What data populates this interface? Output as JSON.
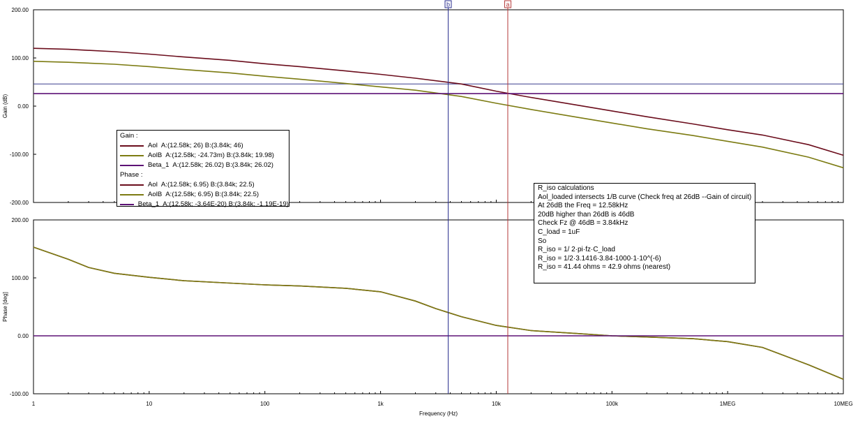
{
  "chart_data": [
    {
      "type": "line",
      "panel": "gain",
      "xscale": "log",
      "xlim": [
        1,
        10000000
      ],
      "ylim": [
        -200,
        200
      ],
      "ylabel": "Gain (dB)",
      "yticks": [
        "200.00",
        "100.00",
        "0.00",
        "-100.00",
        "-200.00"
      ],
      "x": [
        1,
        2,
        5,
        10,
        20,
        50,
        100,
        200,
        500,
        1000,
        2000,
        5000,
        10000,
        20000,
        50000,
        100000,
        200000,
        500000,
        1000000,
        2000000,
        5000000,
        10000000
      ],
      "series": [
        {
          "name": "Aol",
          "color": "#6b0d1c",
          "values": [
            120,
            118,
            113,
            108,
            102,
            95,
            88,
            82,
            73,
            66,
            58,
            46,
            31,
            18,
            2,
            -10,
            -22,
            -37,
            -49,
            -60,
            -80,
            -102
          ]
        },
        {
          "name": "AolB",
          "color": "#7c7b12",
          "values": [
            93,
            91,
            87,
            82,
            76,
            69,
            62,
            56,
            47,
            40,
            33,
            20,
            6,
            -7,
            -23,
            -35,
            -47,
            -61,
            -73,
            -85,
            -106,
            -128
          ]
        },
        {
          "name": "Beta_1",
          "color": "#5d1276",
          "values": [
            26,
            26,
            26,
            26,
            26,
            26,
            26,
            26,
            26,
            26,
            26,
            26,
            26,
            26,
            26,
            26,
            26,
            26,
            26,
            26,
            26,
            26
          ]
        }
      ],
      "hlines": [
        46,
        26
      ]
    },
    {
      "type": "line",
      "panel": "phase",
      "xscale": "log",
      "xlim": [
        1,
        10000000
      ],
      "ylim": [
        -100,
        200
      ],
      "ylabel": "Phase [deg]",
      "xlabel": "Frequency (Hz)",
      "yticks": [
        "200.00",
        "100.00",
        "0.00",
        "-100.00"
      ],
      "xticks": [
        "1",
        "10",
        "100",
        "1k",
        "10k",
        "100k",
        "1MEG",
        "10MEG"
      ],
      "x": [
        1,
        2,
        3,
        5,
        10,
        20,
        50,
        100,
        200,
        500,
        1000,
        2000,
        3000,
        5000,
        10000,
        20000,
        50000,
        100000,
        200000,
        500000,
        1000000,
        2000000,
        5000000,
        10000000
      ],
      "series": [
        {
          "name": "Aol",
          "color": "#6b0d1c",
          "values": [
            153,
            132,
            118,
            108,
            101,
            95,
            91,
            88,
            86,
            82,
            76,
            60,
            47,
            33,
            18,
            9,
            4,
            0,
            -2,
            -5,
            -10,
            -20,
            -50,
            -75
          ]
        },
        {
          "name": "AolB",
          "color": "#7c7b12",
          "values": [
            153,
            132,
            118,
            108,
            101,
            95,
            91,
            88,
            86,
            82,
            76,
            60,
            47,
            33,
            18,
            9,
            4,
            0,
            -2,
            -5,
            -10,
            -20,
            -50,
            -75
          ]
        },
        {
          "name": "Beta_1",
          "color": "#5d1276",
          "values": [
            0,
            0,
            0,
            0,
            0,
            0,
            0,
            0,
            0,
            0,
            0,
            0,
            0,
            0,
            0,
            0,
            0,
            0,
            0,
            0,
            0,
            0,
            0,
            0
          ]
        }
      ]
    }
  ],
  "cursors": [
    {
      "label": "b",
      "freq": 3840,
      "color": "#2b2f8f"
    },
    {
      "label": "a",
      "freq": 12580,
      "color": "#b53a3a"
    }
  ],
  "legend": {
    "gain_title": "Gain :",
    "phase_title": "Phase :",
    "gain_rows": [
      {
        "name": "Aol",
        "color": "#6b0d1c",
        "text": "A:(12.58k; 26) B:(3.84k; 46)"
      },
      {
        "name": "AolB",
        "color": "#7c7b12",
        "text": "A:(12.58k; -24.73m) B:(3.84k; 19.98)"
      },
      {
        "name": "Beta_1",
        "color": "#5d1276",
        "text": "A:(12.58k; 26.02) B:(3.84k; 26.02)"
      }
    ],
    "phase_rows": [
      {
        "name": "Aol",
        "color": "#6b0d1c",
        "text": "A:(12.58k; 6.95) B:(3.84k; 22.5)"
      },
      {
        "name": "AolB",
        "color": "#7c7b12",
        "text": "A:(12.58k; 6.95) B:(3.84k; 22.5)"
      },
      {
        "name": "Beta_1",
        "color": "#5d1276",
        "text": "A:(12.58k; -3.64E-20) B:(3.84k; -1.19E-19)"
      }
    ]
  },
  "note": {
    "lines": [
      "R_iso calculations",
      "Aol_loaded intersects 1/B curve (Check freq at 26dB --Gain of circuit)",
      "At 26dB the Freq = 12.58kHz",
      "20dB higher than 26dB is 46dB",
      "Check Fz @ 46dB = 3.84kHz",
      "C_load = 1uF",
      "So",
      "R_iso = 1/ 2·pi·fz·C_load",
      "R_iso = 1/2·3.1416·3.84·1000·1·10^(-6)",
      "R_iso = 41.44 ohms = 42.9 ohms (nearest)"
    ]
  }
}
